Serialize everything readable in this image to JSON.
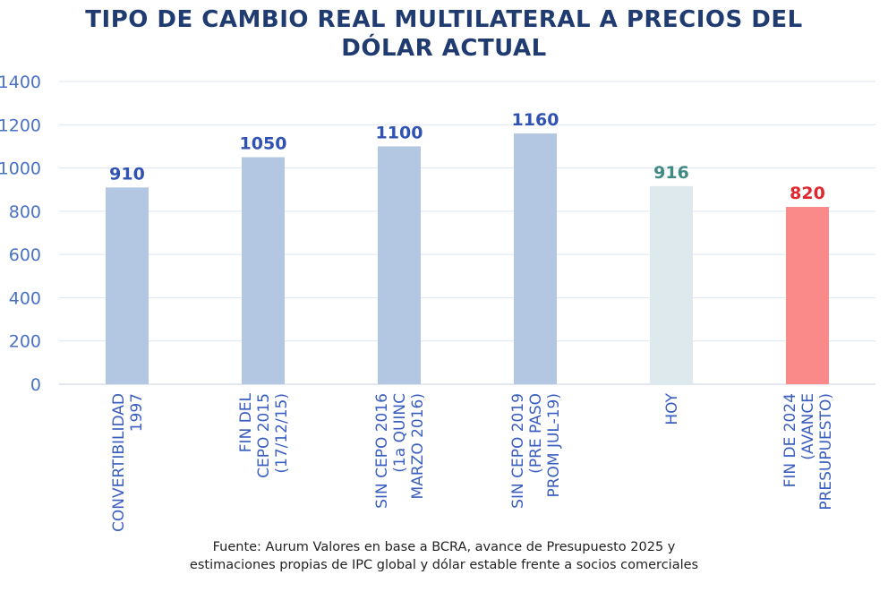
{
  "chart_data": {
    "type": "bar",
    "title": [
      "TIPO DE CAMBIO REAL MULTILATERAL A PRECIOS DEL",
      "DÓLAR ACTUAL"
    ],
    "categories": [
      [
        "CONVERTIBILIDAD",
        "1997"
      ],
      [
        "FIN DEL",
        "CEPO 2015",
        "(17/12/15)"
      ],
      [
        "SIN CEPO 2016",
        "(1a QUINC",
        "MARZO 2016)"
      ],
      [
        "SIN CEPO 2019",
        "(PRE PASO",
        "PROM JUL-19)"
      ],
      [
        "HOY"
      ],
      [
        "FIN DE 2024",
        "(AVANCE",
        "PRESUPUESTO)"
      ]
    ],
    "values": [
      910,
      1050,
      1100,
      1160,
      916,
      820
    ],
    "data_labels": [
      "910",
      "1050",
      "1100",
      "1160",
      "916",
      "820"
    ],
    "bar_colors": [
      "#b4c7e2",
      "#b4c7e2",
      "#b4c7e2",
      "#b4c7e2",
      "#dde9ec",
      "#fa8a8a"
    ],
    "label_colors": [
      "#2f52b3",
      "#2f52b3",
      "#2f52b3",
      "#2f52b3",
      "#3f8a82",
      "#e0262f"
    ],
    "ylim": [
      0,
      1400
    ],
    "yticks": [
      0,
      200,
      400,
      600,
      800,
      1000,
      1200,
      1400
    ],
    "grid": true,
    "xlabel": "",
    "ylabel": "",
    "source": [
      "Fuente: Aurum Valores en base a BCRA, avance de Presupuesto 2025 y",
      "estimaciones propias de IPC global y dólar estable frente a socios comerciales"
    ]
  }
}
